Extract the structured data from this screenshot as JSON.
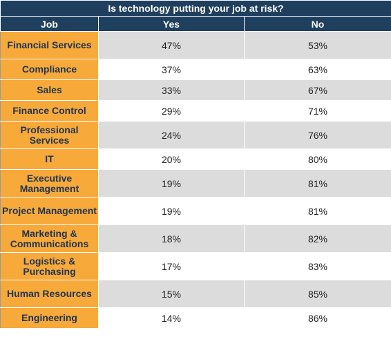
{
  "chart_data": {
    "type": "table",
    "title": "Is technology putting your job at risk?",
    "columns": [
      "Job",
      "Yes",
      "No"
    ],
    "rows": [
      {
        "job": "Financial Services",
        "yes": "47%",
        "no": "53%"
      },
      {
        "job": "Compliance",
        "yes": "37%",
        "no": "63%"
      },
      {
        "job": "Sales",
        "yes": "33%",
        "no": "67%"
      },
      {
        "job": "Finance Control",
        "yes": "29%",
        "no": "71%"
      },
      {
        "job": "Professional Services",
        "yes": "24%",
        "no": "76%"
      },
      {
        "job": "IT",
        "yes": "20%",
        "no": "80%"
      },
      {
        "job": "Executive Management",
        "yes": "19%",
        "no": "81%"
      },
      {
        "job": "Project Management",
        "yes": "19%",
        "no": "81%"
      },
      {
        "job": "Marketing & Communications",
        "yes": "18%",
        "no": "82%"
      },
      {
        "job": "Logistics & Purchasing",
        "yes": "17%",
        "no": "83%"
      },
      {
        "job": "Human Resources",
        "yes": "15%",
        "no": "85%"
      },
      {
        "job": "Engineering",
        "yes": "14%",
        "no": "86%"
      }
    ]
  },
  "colors": {
    "header_bg": "#1f3f5f",
    "job_bg": "#f7a93a",
    "job_text": "#1f3550",
    "row_shade": "#dcdcdc"
  }
}
